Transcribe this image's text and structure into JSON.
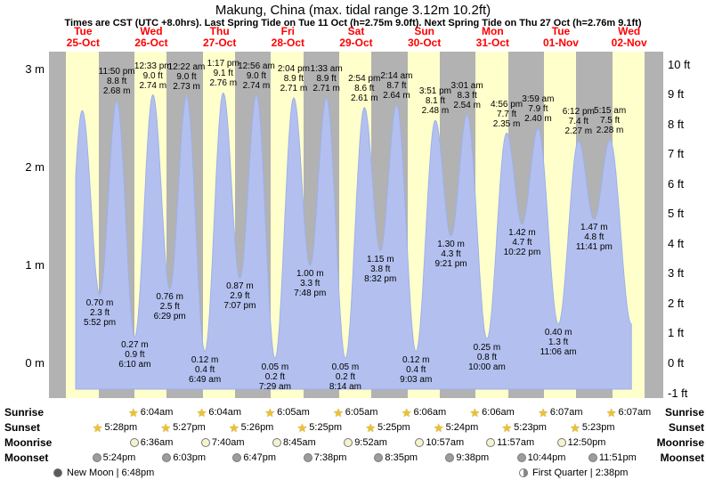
{
  "title": "Makung, China (max. tidal range 3.12m 10.2ft)",
  "subtitle": "Times are CST (UTC +8.0hrs). Last Spring Tide on Tue 11 Oct (h=2.75m 9.0ft). Next Spring Tide on Thu 27 Oct (h=2.76m 9.1ft)",
  "chart_data": {
    "type": "area",
    "x_days": [
      {
        "name": "Tue",
        "date": "25-Oct"
      },
      {
        "name": "Wed",
        "date": "26-Oct"
      },
      {
        "name": "Thu",
        "date": "27-Oct"
      },
      {
        "name": "Fri",
        "date": "28-Oct"
      },
      {
        "name": "Sat",
        "date": "29-Oct"
      },
      {
        "name": "Sun",
        "date": "30-Oct"
      },
      {
        "name": "Mon",
        "date": "31-Oct"
      },
      {
        "name": "Tue",
        "date": "01-Nov"
      },
      {
        "name": "Wed",
        "date": "02-Nov"
      }
    ],
    "y_left": {
      "unit": "m",
      "ticks": [
        3,
        2,
        1,
        0
      ],
      "tick_labels": [
        "3 m",
        "2 m",
        "1 m",
        "0 m"
      ]
    },
    "y_right": {
      "unit": "ft",
      "ticks": [
        10,
        9,
        8,
        7,
        6,
        5,
        4,
        3,
        2,
        1,
        0,
        -1
      ],
      "tick_labels": [
        "10 ft",
        "9 ft",
        "8 ft",
        "7 ft",
        "6 ft",
        "5 ft",
        "4 ft",
        "3 ft",
        "2 ft",
        "1 ft",
        "0 ft",
        "-1 ft"
      ]
    },
    "y_range_m": [
      -0.35,
      3.27
    ],
    "night_bands": {
      "sunset_frac": 0.727,
      "sunrise_frac": 0.2535
    },
    "tide_events": [
      {
        "kind": "low",
        "hidden": true,
        "day": 0,
        "hour": 5.67,
        "height_m": 0.5
      },
      {
        "kind": "high",
        "hidden": true,
        "day": 0,
        "hour": 11.7,
        "height_m": 2.58
      },
      {
        "kind": "low",
        "day": 0,
        "hour": 17.867,
        "time": "5:52 pm",
        "ft": "2.3 ft",
        "m": "0.70 m",
        "height_m": 0.7
      },
      {
        "kind": "high",
        "day": 0,
        "hour": 23.833,
        "time": "11:50 pm",
        "ft": "8.8 ft",
        "m": "2.68 m",
        "height_m": 2.68
      },
      {
        "kind": "low",
        "day": 1,
        "hour": 6.167,
        "time": "6:10 am",
        "ft": "0.9 ft",
        "m": "0.27 m",
        "height_m": 0.27
      },
      {
        "kind": "high",
        "day": 1,
        "hour": 12.55,
        "time": "12:33 pm",
        "ft": "9.0 ft",
        "m": "2.74 m",
        "height_m": 2.74
      },
      {
        "kind": "low",
        "day": 1,
        "hour": 18.483,
        "time": "6:29 pm",
        "ft": "2.5 ft",
        "m": "0.76 m",
        "height_m": 0.76
      },
      {
        "kind": "high",
        "day": 2,
        "hour": 0.367,
        "time": "12:22 am",
        "ft": "9.0 ft",
        "m": "2.73 m",
        "height_m": 2.73
      },
      {
        "kind": "low",
        "day": 2,
        "hour": 6.817,
        "time": "6:49 am",
        "ft": "0.4 ft",
        "m": "0.12 m",
        "height_m": 0.12
      },
      {
        "kind": "high",
        "day": 2,
        "hour": 13.283,
        "time": "1:17 pm",
        "ft": "9.1 ft",
        "m": "2.76 m",
        "height_m": 2.76
      },
      {
        "kind": "low",
        "day": 2,
        "hour": 19.117,
        "time": "7:07 pm",
        "ft": "2.9 ft",
        "m": "0.87 m",
        "height_m": 0.87
      },
      {
        "kind": "high",
        "day": 3,
        "hour": 0.933,
        "time": "12:56 am",
        "ft": "9.0 ft",
        "m": "2.74 m",
        "height_m": 2.74
      },
      {
        "kind": "low",
        "day": 3,
        "hour": 7.483,
        "time": "7:29 am",
        "ft": "0.2 ft",
        "m": "0.05 m",
        "height_m": 0.05
      },
      {
        "kind": "high",
        "day": 3,
        "hour": 14.067,
        "time": "2:04 pm",
        "ft": "8.9 ft",
        "m": "2.71 m",
        "height_m": 2.71
      },
      {
        "kind": "low",
        "day": 3,
        "hour": 19.8,
        "time": "7:48 pm",
        "ft": "3.3 ft",
        "m": "1.00 m",
        "height_m": 1.0
      },
      {
        "kind": "high",
        "day": 4,
        "hour": 1.55,
        "time": "1:33 am",
        "ft": "8.9 ft",
        "m": "2.71 m",
        "height_m": 2.71
      },
      {
        "kind": "low",
        "day": 4,
        "hour": 8.233,
        "time": "8:14 am",
        "ft": "0.2 ft",
        "m": "0.05 m",
        "height_m": 0.05
      },
      {
        "kind": "high",
        "day": 4,
        "hour": 14.9,
        "time": "2:54 pm",
        "ft": "8.6 ft",
        "m": "2.61 m",
        "height_m": 2.61
      },
      {
        "kind": "low",
        "day": 4,
        "hour": 20.533,
        "time": "8:32 pm",
        "ft": "3.8 ft",
        "m": "1.15 m",
        "height_m": 1.15
      },
      {
        "kind": "high",
        "day": 5,
        "hour": 2.233,
        "time": "2:14 am",
        "ft": "8.7 ft",
        "m": "2.64 m",
        "height_m": 2.64
      },
      {
        "kind": "low",
        "day": 5,
        "hour": 9.05,
        "time": "9:03 am",
        "ft": "0.4 ft",
        "m": "0.12 m",
        "height_m": 0.12
      },
      {
        "kind": "high",
        "day": 5,
        "hour": 15.85,
        "time": "3:51 pm",
        "ft": "8.1 ft",
        "m": "2.48 m",
        "height_m": 2.48
      },
      {
        "kind": "low",
        "day": 5,
        "hour": 21.35,
        "time": "9:21 pm",
        "ft": "4.3 ft",
        "m": "1.30 m",
        "height_m": 1.3
      },
      {
        "kind": "high",
        "day": 6,
        "hour": 3.017,
        "time": "3:01 am",
        "ft": "8.3 ft",
        "m": "2.54 m",
        "height_m": 2.54
      },
      {
        "kind": "low",
        "day": 6,
        "hour": 10.0,
        "time": "10:00 am",
        "ft": "0.8 ft",
        "m": "0.25 m",
        "height_m": 0.25
      },
      {
        "kind": "high",
        "day": 6,
        "hour": 16.933,
        "time": "4:56 pm",
        "ft": "7.7 ft",
        "m": "2.35 m",
        "height_m": 2.35
      },
      {
        "kind": "low",
        "day": 6,
        "hour": 22.367,
        "time": "10:22 pm",
        "ft": "4.7 ft",
        "m": "1.42 m",
        "height_m": 1.42
      },
      {
        "kind": "high",
        "day": 7,
        "hour": 3.983,
        "time": "3:59 am",
        "ft": "7.9 ft",
        "m": "2.40 m",
        "height_m": 2.4
      },
      {
        "kind": "low",
        "day": 7,
        "hour": 11.1,
        "time": "11:06 am",
        "ft": "1.3 ft",
        "m": "0.40 m",
        "height_m": 0.4
      },
      {
        "kind": "high",
        "day": 7,
        "hour": 18.2,
        "time": "6:12 pm",
        "ft": "7.4 ft",
        "m": "2.27 m",
        "height_m": 2.27
      },
      {
        "kind": "low",
        "day": 7,
        "hour": 23.683,
        "time": "11:41 pm",
        "ft": "4.8 ft",
        "m": "1.47 m",
        "height_m": 1.47
      },
      {
        "kind": "high",
        "day": 8,
        "hour": 5.25,
        "time": "5:15 am",
        "ft": "7.5 ft",
        "m": "2.28 m",
        "height_m": 2.28
      },
      {
        "kind": "low",
        "hidden": true,
        "day": 8,
        "hour": 12.8,
        "height_m": 0.4
      }
    ]
  },
  "astro": {
    "rows": [
      {
        "key": "sunrise",
        "label": "Sunrise",
        "icon": "star",
        "items": [
          {
            "day": 1,
            "hour": 6.07,
            "time": "6:04am"
          },
          {
            "day": 2,
            "hour": 6.07,
            "time": "6:04am"
          },
          {
            "day": 3,
            "hour": 6.08,
            "time": "6:05am"
          },
          {
            "day": 4,
            "hour": 6.08,
            "time": "6:05am"
          },
          {
            "day": 5,
            "hour": 6.1,
            "time": "6:06am"
          },
          {
            "day": 6,
            "hour": 6.1,
            "time": "6:06am"
          },
          {
            "day": 7,
            "hour": 6.12,
            "time": "6:07am"
          },
          {
            "day": 8,
            "hour": 6.12,
            "time": "6:07am"
          }
        ]
      },
      {
        "key": "sunset",
        "label": "Sunset",
        "icon": "star",
        "items": [
          {
            "day": 0,
            "hour": 17.47,
            "time": "5:28pm"
          },
          {
            "day": 1,
            "hour": 17.45,
            "time": "5:27pm"
          },
          {
            "day": 2,
            "hour": 17.43,
            "time": "5:26pm"
          },
          {
            "day": 3,
            "hour": 17.42,
            "time": "5:25pm"
          },
          {
            "day": 4,
            "hour": 17.42,
            "time": "5:25pm"
          },
          {
            "day": 5,
            "hour": 17.4,
            "time": "5:24pm"
          },
          {
            "day": 6,
            "hour": 17.38,
            "time": "5:23pm"
          },
          {
            "day": 7,
            "hour": 17.38,
            "time": "5:23pm"
          }
        ]
      },
      {
        "key": "moonrise",
        "label": "Moonrise",
        "icon": "moon-light",
        "items": [
          {
            "day": 1,
            "hour": 6.6,
            "time": "6:36am"
          },
          {
            "day": 2,
            "hour": 7.67,
            "time": "7:40am"
          },
          {
            "day": 3,
            "hour": 8.75,
            "time": "8:45am"
          },
          {
            "day": 4,
            "hour": 9.87,
            "time": "9:52am"
          },
          {
            "day": 5,
            "hour": 10.95,
            "time": "10:57am"
          },
          {
            "day": 6,
            "hour": 11.95,
            "time": "11:57am"
          },
          {
            "day": 7,
            "hour": 12.83,
            "time": "12:50pm"
          }
        ]
      },
      {
        "key": "moonset",
        "label": "Moonset",
        "icon": "moon-dark",
        "items": [
          {
            "day": 0,
            "hour": 17.4,
            "time": "5:24pm"
          },
          {
            "day": 1,
            "hour": 18.05,
            "time": "6:03pm"
          },
          {
            "day": 2,
            "hour": 18.78,
            "time": "6:47pm"
          },
          {
            "day": 3,
            "hour": 19.63,
            "time": "7:38pm"
          },
          {
            "day": 4,
            "hour": 20.58,
            "time": "8:35pm"
          },
          {
            "day": 5,
            "hour": 21.63,
            "time": "9:38pm"
          },
          {
            "day": 6,
            "hour": 22.73,
            "time": "10:44pm"
          },
          {
            "day": 7,
            "hour": 23.85,
            "time": "11:51pm"
          }
        ]
      }
    ],
    "footer_left": {
      "icon": "new-moon",
      "text": "New Moon | 6:48pm"
    },
    "footer_right": {
      "icon": "first-quarter",
      "text": "First Quarter | 2:38pm"
    }
  },
  "colors": {
    "day_band": "#ffffcc",
    "night_band": "#b2b2b2",
    "tide_fill": "#b3c0ef",
    "tide_stroke": "#9db0ea",
    "date_red": "#ff0000",
    "star_gold": "#eec32a",
    "moon_light": "#f5f2d0",
    "moon_dark": "#9d9d9d"
  }
}
